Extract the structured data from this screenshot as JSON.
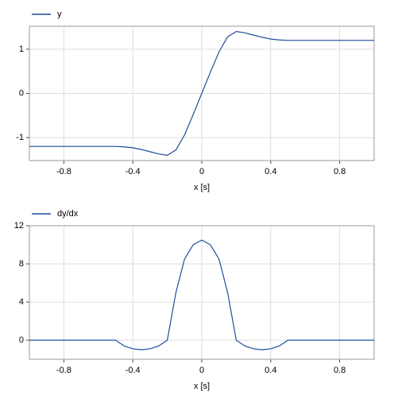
{
  "chart_data": [
    {
      "type": "line",
      "xlabel": "x [s]",
      "xlim": [
        -1,
        1
      ],
      "xticks": [
        -0.8,
        -0.4,
        0,
        0.4,
        0.8
      ],
      "ylim": [
        -1.52,
        1.52
      ],
      "yticks": [
        -1,
        0,
        1
      ],
      "grid": true,
      "x": [
        -1,
        -0.95,
        -0.9,
        -0.85,
        -0.8,
        -0.75,
        -0.7,
        -0.65,
        -0.6,
        -0.55,
        -0.5,
        -0.45,
        -0.4,
        -0.35,
        -0.3,
        -0.25,
        -0.2,
        -0.15,
        -0.1,
        -0.05,
        0,
        0.05,
        0.1,
        0.15,
        0.2,
        0.25,
        0.3,
        0.35,
        0.4,
        0.45,
        0.5,
        0.55,
        0.6,
        0.65,
        0.7,
        0.75,
        0.8,
        0.85,
        0.9,
        0.95,
        1
      ],
      "series": [
        {
          "name": "y",
          "color": "#1f4e9a",
          "values": [
            -1.2,
            -1.2,
            -1.2,
            -1.2,
            -1.2,
            -1.2,
            -1.2,
            -1.2,
            -1.2,
            -1.2,
            -1.2,
            -1.21,
            -1.23,
            -1.27,
            -1.32,
            -1.37,
            -1.4,
            -1.28,
            -0.94,
            -0.48,
            0,
            0.48,
            0.94,
            1.28,
            1.4,
            1.37,
            1.32,
            1.27,
            1.23,
            1.21,
            1.2,
            1.2,
            1.2,
            1.2,
            1.2,
            1.2,
            1.2,
            1.2,
            1.2,
            1.2,
            1.2
          ]
        }
      ]
    },
    {
      "type": "line",
      "xlabel": "x [s]",
      "xlim": [
        -1,
        1
      ],
      "xticks": [
        -0.8,
        -0.4,
        0,
        0.4,
        0.8
      ],
      "ylim": [
        -2,
        12
      ],
      "yticks": [
        0,
        4,
        8,
        12
      ],
      "grid": true,
      "x": [
        -1,
        -0.95,
        -0.9,
        -0.85,
        -0.8,
        -0.75,
        -0.7,
        -0.65,
        -0.6,
        -0.55,
        -0.5,
        -0.45,
        -0.4,
        -0.35,
        -0.3,
        -0.25,
        -0.2,
        -0.15,
        -0.1,
        -0.05,
        0,
        0.05,
        0.1,
        0.15,
        0.2,
        0.25,
        0.3,
        0.35,
        0.4,
        0.45,
        0.5,
        0.55,
        0.6,
        0.65,
        0.7,
        0.75,
        0.8,
        0.85,
        0.9,
        0.95,
        1
      ],
      "series": [
        {
          "name": "dy/dx",
          "color": "#1f4e9a",
          "values": [
            0,
            0,
            0,
            0,
            0,
            0,
            0,
            0,
            0,
            0,
            0,
            -0.6,
            -0.9,
            -1,
            -0.9,
            -0.6,
            0,
            5,
            8.5,
            10,
            10.5,
            10,
            8.5,
            5,
            0,
            -0.6,
            -0.9,
            -1,
            -0.9,
            -0.6,
            0,
            0,
            0,
            0,
            0,
            0,
            0,
            0,
            0,
            0,
            0
          ]
        }
      ]
    }
  ]
}
